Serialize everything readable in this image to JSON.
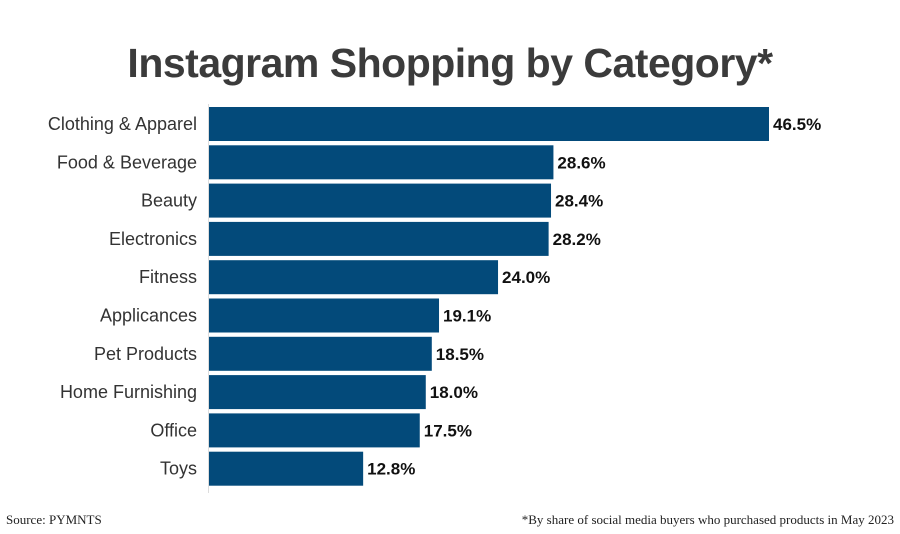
{
  "chart_data": {
    "type": "bar",
    "orientation": "horizontal",
    "title": "Instagram Shopping by Category*",
    "categories": [
      "Clothing & Apparel",
      "Food & Beverage",
      "Beauty",
      "Electronics",
      "Fitness",
      "Applicances",
      "Pet Products",
      "Home Furnishing",
      "Office",
      "Toys"
    ],
    "values": [
      46.5,
      28.6,
      28.4,
      28.2,
      24.0,
      19.1,
      18.5,
      18.0,
      17.5,
      12.8
    ],
    "data_labels": [
      "46.5%",
      "28.6%",
      "28.4%",
      "28.2%",
      "24.0%",
      "19.1%",
      "18.5%",
      "18.0%",
      "17.5%",
      "12.8%"
    ],
    "unit": "%",
    "xlim": [
      0,
      46.5
    ],
    "grid": false,
    "legend": "none",
    "bar_color": "#034a7a"
  },
  "footer": {
    "source": "Source: PYMNTS",
    "note": "*By share of social media buyers who purchased products in May 2023"
  }
}
